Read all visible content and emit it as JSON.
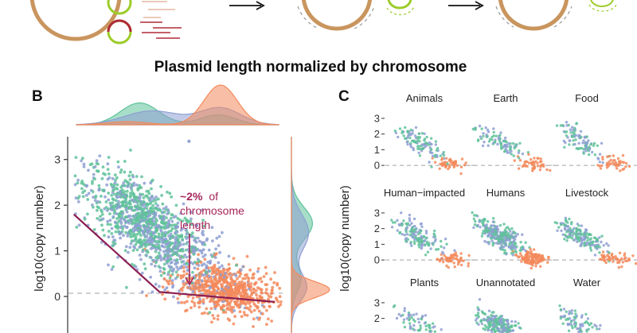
{
  "figure_title": "Plasmid length normalized by chromosome",
  "colors": {
    "series_green": "#5fc29a",
    "series_blue": "#8e9fd2",
    "series_orange": "#f38a5c",
    "fit_line": "#8b1d52",
    "annotation": "#a52458",
    "chromosome_ring": "#c9955e",
    "plasmid_ring": "#9ccc28",
    "fragment_red": "#b02a36",
    "dashed_zero": "#b3b3b3"
  },
  "panels": {
    "B": {
      "label": "B"
    },
    "C": {
      "label": "C"
    }
  },
  "chart_data": [
    {
      "type": "scatter",
      "panel": "B",
      "xlabel": "",
      "ylabel": "log10(copy number)",
      "yticks": [
        0,
        1,
        2,
        3
      ],
      "ylim": [
        -0.8,
        3.5
      ],
      "xlim": [
        -3.4,
        0.6
      ],
      "reference_line": {
        "y": 0,
        "style": "dashed"
      },
      "series": [
        {
          "name": "green",
          "cluster": {
            "x_mean": -2.0,
            "x_sd": 0.55,
            "slope": -0.75,
            "intercept": 0.15,
            "noise": 0.42,
            "count": 650
          }
        },
        {
          "name": "blue",
          "cluster": {
            "x_mean": -1.7,
            "x_sd": 0.7,
            "slope": -0.7,
            "intercept": 0.1,
            "noise": 0.45,
            "count": 600
          }
        },
        {
          "name": "orange",
          "cluster": {
            "x_mean": -0.45,
            "x_sd": 0.45,
            "slope": -0.2,
            "intercept": 0.05,
            "noise": 0.28,
            "count": 650
          }
        }
      ],
      "piecewise_fit": [
        [
          -3.3,
          1.8
        ],
        [
          -1.7,
          0.1
        ],
        [
          0.45,
          -0.12
        ]
      ],
      "annotation": {
        "bold": "~2%",
        "lines": [
          "of",
          "chromosome",
          "length"
        ],
        "arrow_to": [
          -1.7,
          0.1
        ]
      },
      "outliers": [
        [
          -1.15,
          3.4
        ]
      ],
      "top_density": [
        {
          "name": "green",
          "peaks": [
            {
              "mu": -2.15,
              "sd": 0.38,
              "amp": 0.55
            },
            {
              "mu": -0.6,
              "sd": 0.35,
              "amp": 0.25
            }
          ]
        },
        {
          "name": "blue",
          "peaks": [
            {
              "mu": -1.9,
              "sd": 0.55,
              "amp": 0.35
            },
            {
              "mu": -0.55,
              "sd": 0.4,
              "amp": 0.42
            }
          ]
        },
        {
          "name": "orange",
          "peaks": [
            {
              "mu": -0.55,
              "sd": 0.33,
              "amp": 1.0
            },
            {
              "mu": -2.4,
              "sd": 0.4,
              "amp": 0.08
            }
          ]
        }
      ],
      "right_density": [
        {
          "name": "green",
          "peaks": [
            {
              "mu": 1.6,
              "sd": 0.35,
              "amp": 0.55
            },
            {
              "mu": 0.4,
              "sd": 0.3,
              "amp": 0.25
            }
          ]
        },
        {
          "name": "blue",
          "peaks": [
            {
              "mu": 1.4,
              "sd": 0.4,
              "amp": 0.45
            },
            {
              "mu": 0.2,
              "sd": 0.3,
              "amp": 0.4
            }
          ]
        },
        {
          "name": "orange",
          "peaks": [
            {
              "mu": 0.15,
              "sd": 0.18,
              "amp": 1.0
            }
          ]
        }
      ]
    },
    {
      "type": "scatter",
      "panel": "C",
      "ylabel": "log10(copy number)",
      "yticks": [
        0,
        1,
        2,
        3
      ],
      "ylim": [
        -0.5,
        3.3
      ],
      "xlim": [
        -3.4,
        0.6
      ],
      "reference_line": {
        "y": 0,
        "style": "dashed"
      },
      "facets": [
        {
          "title": "Animals",
          "n": 150
        },
        {
          "title": "Earth",
          "n": 140
        },
        {
          "title": "Food",
          "n": 140
        },
        {
          "title": "Human−impacted",
          "n": 200
        },
        {
          "title": "Humans",
          "n": 420
        },
        {
          "title": "Livestock",
          "n": 220
        },
        {
          "title": "Plants",
          "n": 120
        },
        {
          "title": "Unannotated",
          "n": 380
        },
        {
          "title": "Water",
          "n": 140
        }
      ]
    }
  ]
}
